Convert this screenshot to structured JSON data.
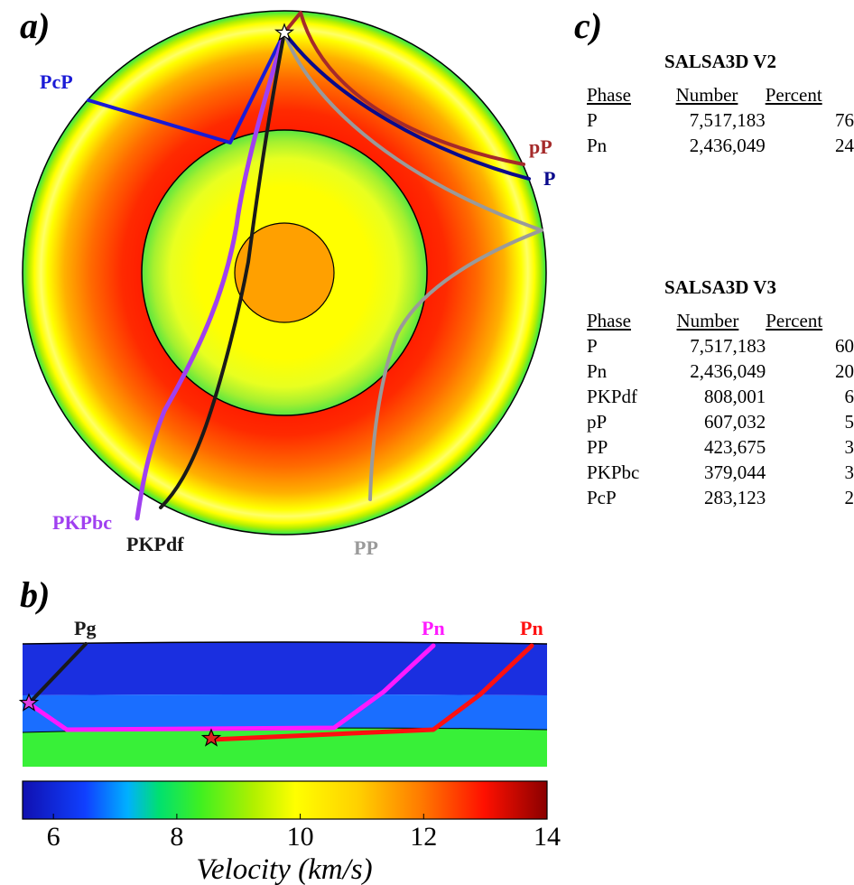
{
  "panel_a": {
    "label": "a)",
    "ray_labels": {
      "PcP": "PcP",
      "pP": "pP",
      "P": "P",
      "PKPbc": "PKPbc",
      "PKPdf": "PKPdf",
      "PP": "PP"
    },
    "colors": {
      "PcP": "#1a1ad6",
      "pP": "#a52a2a",
      "P": "#0a0a8c",
      "PKPbc": "#a040f0",
      "PKPdf": "#1a1a1a",
      "PP": "#9a9a9a"
    }
  },
  "panel_b": {
    "label": "b)",
    "ray_labels": {
      "Pg": "Pg",
      "Pn_magenta": "Pn",
      "Pn_red": "Pn"
    },
    "colors": {
      "Pg": "#1a1a1a",
      "Pn_magenta": "#ff1aff",
      "Pn_red": "#ff1010"
    },
    "colorbar": {
      "ticks": [
        "6",
        "8",
        "10",
        "12",
        "14"
      ],
      "tick_values": [
        6,
        8,
        10,
        12,
        14
      ],
      "range": [
        5.5,
        14
      ],
      "label": "Velocity (km/s)"
    }
  },
  "panel_c": {
    "label": "c)",
    "tables": [
      {
        "title": "SALSA3D V2",
        "headers": [
          "Phase",
          "Number",
          "Percent"
        ],
        "rows": [
          {
            "phase": "P",
            "number": "7,517,183",
            "percent": "76"
          },
          {
            "phase": "Pn",
            "number": "2,436,049",
            "percent": "24"
          }
        ]
      },
      {
        "title": "SALSA3D V3",
        "headers": [
          "Phase",
          "Number",
          "Percent"
        ],
        "rows": [
          {
            "phase": "P",
            "number": "7,517,183",
            "percent": "60"
          },
          {
            "phase": "Pn",
            "number": "2,436,049",
            "percent": "20"
          },
          {
            "phase": "PKPdf",
            "number": "808,001",
            "percent": "6"
          },
          {
            "phase": "pP",
            "number": "607,032",
            "percent": "5"
          },
          {
            "phase": "PP",
            "number": "423,675",
            "percent": "3"
          },
          {
            "phase": "PKPbc",
            "number": "379,044",
            "percent": "3"
          },
          {
            "phase": "PcP",
            "number": "283,123",
            "percent": "2"
          }
        ]
      }
    ]
  }
}
